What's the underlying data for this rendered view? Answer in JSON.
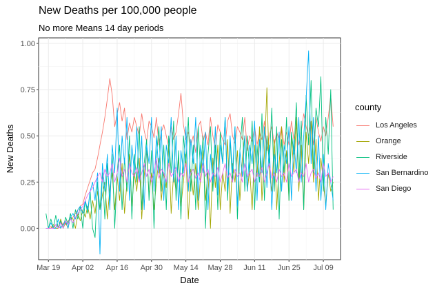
{
  "chart_data": {
    "type": "line",
    "title": "New Deaths per 100,000 people",
    "subtitle": "No more Means 14 day periods",
    "xlabel": "Date",
    "ylabel": "New Deaths",
    "xlim": [
      "2020-03-15",
      "2020-07-16"
    ],
    "ylim": [
      -0.17,
      1.03
    ],
    "x_ticks": [
      {
        "date": "2020-03-19",
        "label": "Mar 19"
      },
      {
        "date": "2020-04-02",
        "label": "Apr 02"
      },
      {
        "date": "2020-04-16",
        "label": "Apr 16"
      },
      {
        "date": "2020-04-30",
        "label": "Apr 30"
      },
      {
        "date": "2020-05-14",
        "label": "May 14"
      },
      {
        "date": "2020-05-28",
        "label": "May 28"
      },
      {
        "date": "2020-06-11",
        "label": "Jun 11"
      },
      {
        "date": "2020-06-25",
        "label": "Jun 25"
      },
      {
        "date": "2020-07-09",
        "label": "Jul 09"
      }
    ],
    "y_ticks": [
      {
        "value": 0.0,
        "label": "0.00"
      },
      {
        "value": 0.25,
        "label": "0.25"
      },
      {
        "value": 0.5,
        "label": "0.50"
      },
      {
        "value": 0.75,
        "label": "0.75"
      },
      {
        "value": 1.0,
        "label": "1.00"
      }
    ],
    "grid": true,
    "legend_title": "county",
    "legend_position": "right",
    "x_start": "2020-03-18",
    "series": [
      {
        "name": "Los Angeles",
        "color": "#F8766D",
        "values": [
          0.0,
          0.0,
          0.01,
          0.0,
          0.02,
          0.01,
          0.0,
          0.03,
          0.02,
          0.04,
          0.05,
          0.06,
          0.08,
          0.1,
          0.12,
          0.13,
          0.18,
          0.22,
          0.26,
          0.3,
          0.32,
          0.38,
          0.45,
          0.52,
          0.6,
          0.7,
          0.81,
          0.72,
          0.55,
          0.62,
          0.68,
          0.58,
          0.65,
          0.48,
          0.57,
          0.52,
          0.6,
          0.55,
          0.5,
          0.62,
          0.53,
          0.47,
          0.58,
          0.55,
          0.49,
          0.6,
          0.45,
          0.52,
          0.56,
          0.5,
          0.44,
          0.55,
          0.48,
          0.52,
          0.62,
          0.73,
          0.56,
          0.48,
          0.52,
          0.45,
          0.5,
          0.41,
          0.55,
          0.58,
          0.47,
          0.52,
          0.45,
          0.6,
          0.5,
          0.43,
          0.56,
          0.52,
          0.48,
          0.45,
          0.58,
          0.62,
          0.5,
          0.46,
          0.55,
          0.52,
          0.48,
          0.6,
          0.42,
          0.5,
          0.47,
          0.55,
          0.45,
          0.52,
          0.48,
          0.58,
          0.42,
          0.5,
          0.55,
          0.45,
          0.52,
          0.48,
          0.55,
          0.45,
          0.52,
          0.45,
          0.58,
          0.48,
          0.55,
          0.45,
          0.52,
          0.62,
          0.55,
          0.5,
          0.58,
          0.45,
          0.6,
          0.52,
          0.47,
          0.55,
          0.5,
          0.6,
          0.72,
          0.55
        ]
      },
      {
        "name": "Orange",
        "color": "#A3A500",
        "values": [
          0.0,
          0.0,
          0.0,
          0.02,
          0.0,
          0.0,
          0.05,
          0.0,
          0.03,
          0.0,
          0.06,
          0.05,
          0.0,
          0.08,
          0.04,
          0.1,
          0.06,
          0.12,
          0.05,
          0.15,
          0.08,
          0.2,
          0.1,
          0.18,
          0.25,
          0.05,
          0.22,
          0.3,
          0.1,
          0.28,
          0.15,
          0.35,
          0.08,
          0.25,
          0.4,
          0.12,
          0.3,
          0.2,
          0.38,
          0.05,
          0.28,
          0.42,
          0.18,
          0.3,
          0.1,
          0.25,
          0.38,
          0.15,
          0.3,
          0.22,
          0.45,
          0.08,
          0.3,
          0.2,
          0.38,
          0.12,
          0.25,
          0.4,
          0.05,
          0.32,
          0.18,
          0.35,
          0.1,
          0.28,
          0.42,
          0.15,
          0.3,
          0.0,
          0.38,
          0.22,
          0.45,
          0.1,
          0.3,
          0.2,
          0.48,
          0.08,
          0.35,
          0.25,
          0.42,
          0.15,
          0.38,
          0.5,
          0.2,
          0.32,
          0.1,
          0.45,
          0.28,
          0.55,
          0.15,
          0.4,
          0.76,
          0.3,
          0.2,
          0.48,
          0.1,
          0.35,
          0.55,
          0.25,
          0.42,
          0.15,
          0.5,
          0.3,
          0.6,
          0.2,
          0.45,
          0.1,
          0.52,
          0.35,
          0.58,
          0.25,
          0.48,
          0.15,
          0.38,
          0.25,
          0.12,
          0.3,
          0.2,
          0.25
        ]
      },
      {
        "name": "Riverside",
        "color": "#00BF7D",
        "values": [
          0.08,
          0.0,
          0.05,
          0.0,
          0.07,
          0.0,
          0.04,
          0.0,
          0.06,
          0.02,
          0.08,
          0.0,
          0.1,
          0.05,
          0.12,
          0.0,
          0.15,
          0.08,
          0.2,
          0.0,
          -0.05,
          0.25,
          0.1,
          0.3,
          0.05,
          0.35,
          0.15,
          0.4,
          0.0,
          0.3,
          0.45,
          0.1,
          0.38,
          0.2,
          0.5,
          0.05,
          0.4,
          0.25,
          0.55,
          0.1,
          0.35,
          0.48,
          0.15,
          0.42,
          0.0,
          0.38,
          0.55,
          0.2,
          0.45,
          0.1,
          0.5,
          0.3,
          0.58,
          0.15,
          0.42,
          0.05,
          0.5,
          0.35,
          0.6,
          0.2,
          0.45,
          0.1,
          0.55,
          0.3,
          0.5,
          0.0,
          0.4,
          0.55,
          0.2,
          0.45,
          0.1,
          0.52,
          0.35,
          0.6,
          0.15,
          0.48,
          0.25,
          0.55,
          0.05,
          0.42,
          0.6,
          0.2,
          0.5,
          0.3,
          0.58,
          0.1,
          0.45,
          0.25,
          0.62,
          0.15,
          0.5,
          0.35,
          0.65,
          0.2,
          0.55,
          0.05,
          0.48,
          0.3,
          0.6,
          0.15,
          0.52,
          0.4,
          0.68,
          0.25,
          0.58,
          0.1,
          0.72,
          0.45,
          0.8,
          0.3,
          0.65,
          0.55,
          0.82,
          0.2,
          0.6,
          0.4,
          0.75,
          0.1
        ]
      },
      {
        "name": "San Bernardino",
        "color": "#00B0F6",
        "values": [
          0.0,
          0.0,
          0.03,
          0.0,
          0.0,
          0.05,
          0.0,
          0.02,
          0.04,
          0.0,
          0.06,
          0.08,
          0.05,
          0.1,
          0.12,
          0.08,
          0.15,
          0.1,
          0.2,
          0.25,
          0.15,
          0.3,
          -0.14,
          0.35,
          0.2,
          0.4,
          0.1,
          0.45,
          0.3,
          0.65,
          0.2,
          0.5,
          0.35,
          0.6,
          0.15,
          0.45,
          0.3,
          0.55,
          0.25,
          0.5,
          0.1,
          0.45,
          0.35,
          0.6,
          0.2,
          0.5,
          0.3,
          0.55,
          0.15,
          0.45,
          0.35,
          0.6,
          0.25,
          0.5,
          0.1,
          0.42,
          0.3,
          0.55,
          0.2,
          0.48,
          0.35,
          0.6,
          0.15,
          0.45,
          0.3,
          0.52,
          0.1,
          0.4,
          0.25,
          0.55,
          0.18,
          0.45,
          0.35,
          0.6,
          0.2,
          0.5,
          0.3,
          0.55,
          0.12,
          0.42,
          0.28,
          0.5,
          0.2,
          0.45,
          0.35,
          0.58,
          0.15,
          0.48,
          0.3,
          0.55,
          0.22,
          0.45,
          0.1,
          0.4,
          0.3,
          0.52,
          0.2,
          0.45,
          0.35,
          0.55,
          0.15,
          0.48,
          0.3,
          0.6,
          0.25,
          0.5,
          0.7,
          0.96,
          0.35,
          0.6,
          0.2,
          0.5,
          0.15,
          0.4,
          0.1,
          0.35,
          0.25,
          0.15
        ]
      },
      {
        "name": "San Diego",
        "color": "#E76BF3",
        "values": [
          0.0,
          0.0,
          0.0,
          0.0,
          0.02,
          0.0,
          0.03,
          0.0,
          0.04,
          0.02,
          0.05,
          0.03,
          0.06,
          0.08,
          0.1,
          0.12,
          0.15,
          0.18,
          0.2,
          0.22,
          0.25,
          0.28,
          0.3,
          0.25,
          0.32,
          0.28,
          0.3,
          0.35,
          0.25,
          0.3,
          0.38,
          0.28,
          0.32,
          0.25,
          0.35,
          0.3,
          0.28,
          0.33,
          0.25,
          0.3,
          0.35,
          0.28,
          0.32,
          0.25,
          0.3,
          0.38,
          0.27,
          0.32,
          0.3,
          0.25,
          0.35,
          0.28,
          0.3,
          0.33,
          0.25,
          0.3,
          0.28,
          0.35,
          0.25,
          0.3,
          0.32,
          0.27,
          0.3,
          0.25,
          0.35,
          0.28,
          0.32,
          0.25,
          0.3,
          0.28,
          0.33,
          0.25,
          0.3,
          0.35,
          0.27,
          0.3,
          0.25,
          0.32,
          0.28,
          0.3,
          0.25,
          0.35,
          0.28,
          0.3,
          0.32,
          0.25,
          0.3,
          0.28,
          0.33,
          0.25,
          0.3,
          0.35,
          0.27,
          0.3,
          0.25,
          0.32,
          0.28,
          0.3,
          0.25,
          0.35,
          0.28,
          0.3,
          0.32,
          0.25,
          0.3,
          0.28,
          0.35,
          0.25,
          0.3,
          0.32,
          0.27,
          0.3,
          0.25,
          0.35,
          0.28,
          0.3,
          0.25,
          0.28
        ]
      }
    ]
  }
}
